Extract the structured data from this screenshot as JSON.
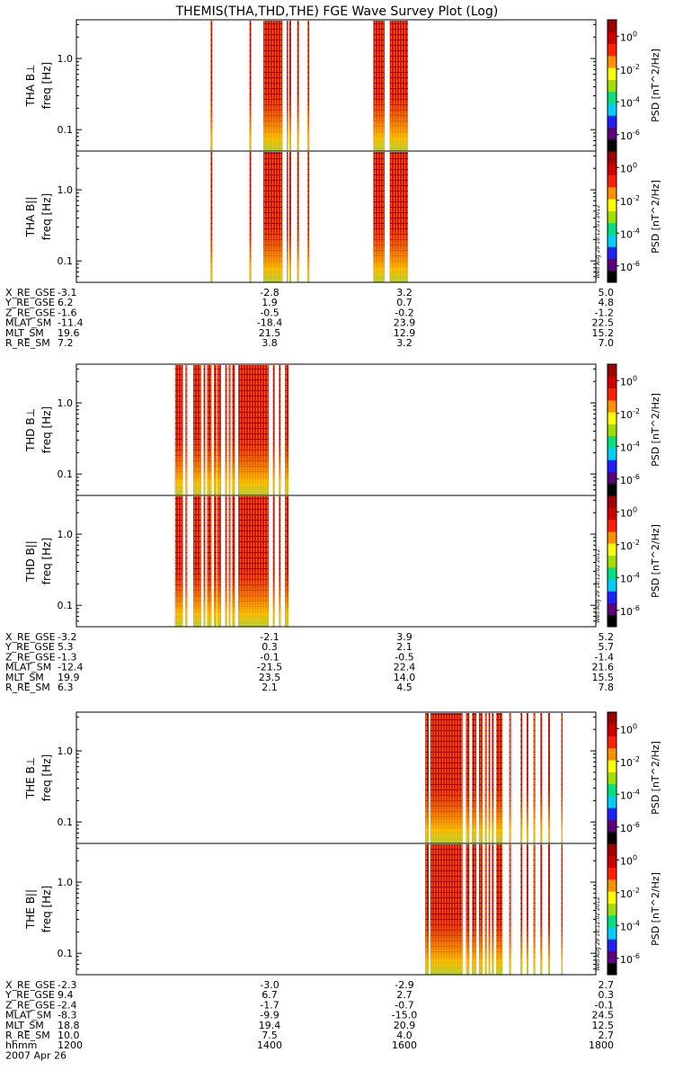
{
  "title": "THEMIS(THA,THD,THE) FGE Wave Survey Plot (Log)",
  "timestamps": [
    "Wed Aug 29 18:12:01 2012",
    "Wed Aug 29 18:12:02 2012",
    "Wed Aug 29 18:12:02 2012"
  ],
  "colorscale": {
    "ticks": [
      "10^0",
      "10^-2",
      "10^-4",
      "10^-6"
    ],
    "exponents": [
      0,
      -2,
      -4,
      -6
    ],
    "label": "PSD [nT^2/Hz]",
    "colors": [
      "#000000",
      "#5a007a",
      "#2020ff",
      "#00d0ff",
      "#00e080",
      "#a0e000",
      "#ffff00",
      "#ff9000",
      "#ff2000",
      "#d00000",
      "#a00000"
    ]
  },
  "chart_data": [
    {
      "type": "heatmap",
      "probe": "THA",
      "panels": [
        {
          "ylabel": "THA B⊥",
          "unit": "freq [Hz]",
          "yticks": [
            "1.0",
            "0.1"
          ]
        },
        {
          "ylabel": "THA B||",
          "unit": "freq [Hz]",
          "yticks": [
            "1.0",
            "0.1"
          ]
        }
      ],
      "ylim": [
        0.05,
        3.5
      ],
      "yscale": "log",
      "xlim": [
        1200,
        1800
      ],
      "data_intervals_hhmm": [
        [
          1355,
          1357
        ],
        [
          1400,
          1402
        ],
        [
          1416,
          1438
        ],
        [
          1443,
          1444
        ],
        [
          1446,
          1448
        ],
        [
          1455,
          1457
        ],
        [
          1467,
          1469
        ],
        [
          1543,
          1556
        ],
        [
          1562,
          1583
        ]
      ],
      "ephemeris": [
        {
          "label": "X_RE_GSE",
          "values": [
            "-3.1",
            "-2.8",
            "3.2",
            "5.0"
          ]
        },
        {
          "label": "Y_RE_GSE",
          "values": [
            "6.2",
            "1.9",
            "0.7",
            "4.8"
          ]
        },
        {
          "label": "Z_RE_GSE",
          "values": [
            "-1.6",
            "-0.5",
            "-0.2",
            "-1.2"
          ]
        },
        {
          "label": "MLAT_SM",
          "values": [
            "-11.4",
            "-18.4",
            "23.9",
            "22.5"
          ]
        },
        {
          "label": "MLT_SM",
          "values": [
            "19.6",
            "21.5",
            "12.9",
            "15.2"
          ]
        },
        {
          "label": "R_RE_SM",
          "values": [
            "7.2",
            "3.8",
            "3.2",
            "7.0"
          ]
        }
      ]
    },
    {
      "type": "heatmap",
      "probe": "THD",
      "panels": [
        {
          "ylabel": "THD B⊥",
          "unit": "freq [Hz]",
          "yticks": [
            "1.0",
            "0.1"
          ]
        },
        {
          "ylabel": "THD B||",
          "unit": "freq [Hz]",
          "yticks": [
            "1.0",
            "0.1"
          ]
        }
      ],
      "ylim": [
        0.05,
        3.5
      ],
      "yscale": "log",
      "xlim": [
        1200,
        1800
      ],
      "data_intervals_hhmm": [
        [
          1314,
          1323
        ],
        [
          1326,
          1328
        ],
        [
          1335,
          1344
        ],
        [
          1347,
          1349
        ],
        [
          1351,
          1356
        ],
        [
          1359,
          1362
        ],
        [
          1363,
          1367
        ],
        [
          1372,
          1374
        ],
        [
          1376,
          1378
        ],
        [
          1380,
          1383
        ],
        [
          1387,
          1422
        ],
        [
          1427,
          1429
        ],
        [
          1434,
          1436
        ],
        [
          1441,
          1445
        ]
      ],
      "ephemeris": [
        {
          "label": "X_RE_GSE",
          "values": [
            "-3.2",
            "-2.1",
            "3.9",
            "5.2"
          ]
        },
        {
          "label": "Y_RE_GSE",
          "values": [
            "5.3",
            "0.3",
            "2.1",
            "5.7"
          ]
        },
        {
          "label": "Z_RE_GSE",
          "values": [
            "-1.3",
            "-0.1",
            "-0.5",
            "-1.4"
          ]
        },
        {
          "label": "MLAT_SM",
          "values": [
            "-12.4",
            "-21.5",
            "22.4",
            "21.6"
          ]
        },
        {
          "label": "MLT_SM",
          "values": [
            "19.9",
            "23.5",
            "14.0",
            "15.5"
          ]
        },
        {
          "label": "R_RE_SM",
          "values": [
            "6.3",
            "2.1",
            "4.5",
            "7.8"
          ]
        }
      ]
    },
    {
      "type": "heatmap",
      "probe": "THE",
      "panels": [
        {
          "ylabel": "THE B⊥",
          "unit": "freq [Hz]",
          "yticks": [
            "1.0",
            "0.1"
          ]
        },
        {
          "ylabel": "THE B||",
          "unit": "freq [Hz]",
          "yticks": [
            "1.0",
            "0.1"
          ]
        }
      ],
      "ylim": [
        0.05,
        3.5
      ],
      "yscale": "log",
      "xlim": [
        1200,
        1800
      ],
      "data_intervals_hhmm": [
        [
          1603,
          1607
        ],
        [
          1609,
          1646
        ],
        [
          1650,
          1654
        ],
        [
          1657,
          1662
        ],
        [
          1665,
          1669
        ],
        [
          1672,
          1674
        ],
        [
          1676,
          1678
        ],
        [
          1680,
          1682
        ],
        [
          1685,
          1692
        ],
        [
          1700,
          1702
        ],
        [
          1713,
          1715
        ],
        [
          1720,
          1722
        ],
        [
          1728,
          1730
        ],
        [
          1736,
          1738
        ],
        [
          1745,
          1747
        ],
        [
          1760,
          1761
        ]
      ],
      "ephemeris": [
        {
          "label": "X_RE_GSE",
          "values": [
            "-2.3",
            "-3.0",
            "-2.9",
            "2.7"
          ]
        },
        {
          "label": "Y_RE_GSE",
          "values": [
            "9.4",
            "6.7",
            "2.7",
            "0.3"
          ]
        },
        {
          "label": "Z_RE_GSE",
          "values": [
            "-2.4",
            "-1.7",
            "-0.7",
            "-0.1"
          ]
        },
        {
          "label": "MLAT_SM",
          "values": [
            "-8.3",
            "-9.9",
            "-15.0",
            "24.5"
          ]
        },
        {
          "label": "MLT_SM",
          "values": [
            "18.8",
            "19.4",
            "20.9",
            "12.5"
          ]
        },
        {
          "label": "R_RE_SM",
          "values": [
            "10.0",
            "7.5",
            "4.0",
            "2.7"
          ]
        },
        {
          "label": "hhmm",
          "values": [
            "1200",
            "1400",
            "1600",
            "1800"
          ]
        }
      ],
      "date": "2007 Apr 26"
    }
  ]
}
